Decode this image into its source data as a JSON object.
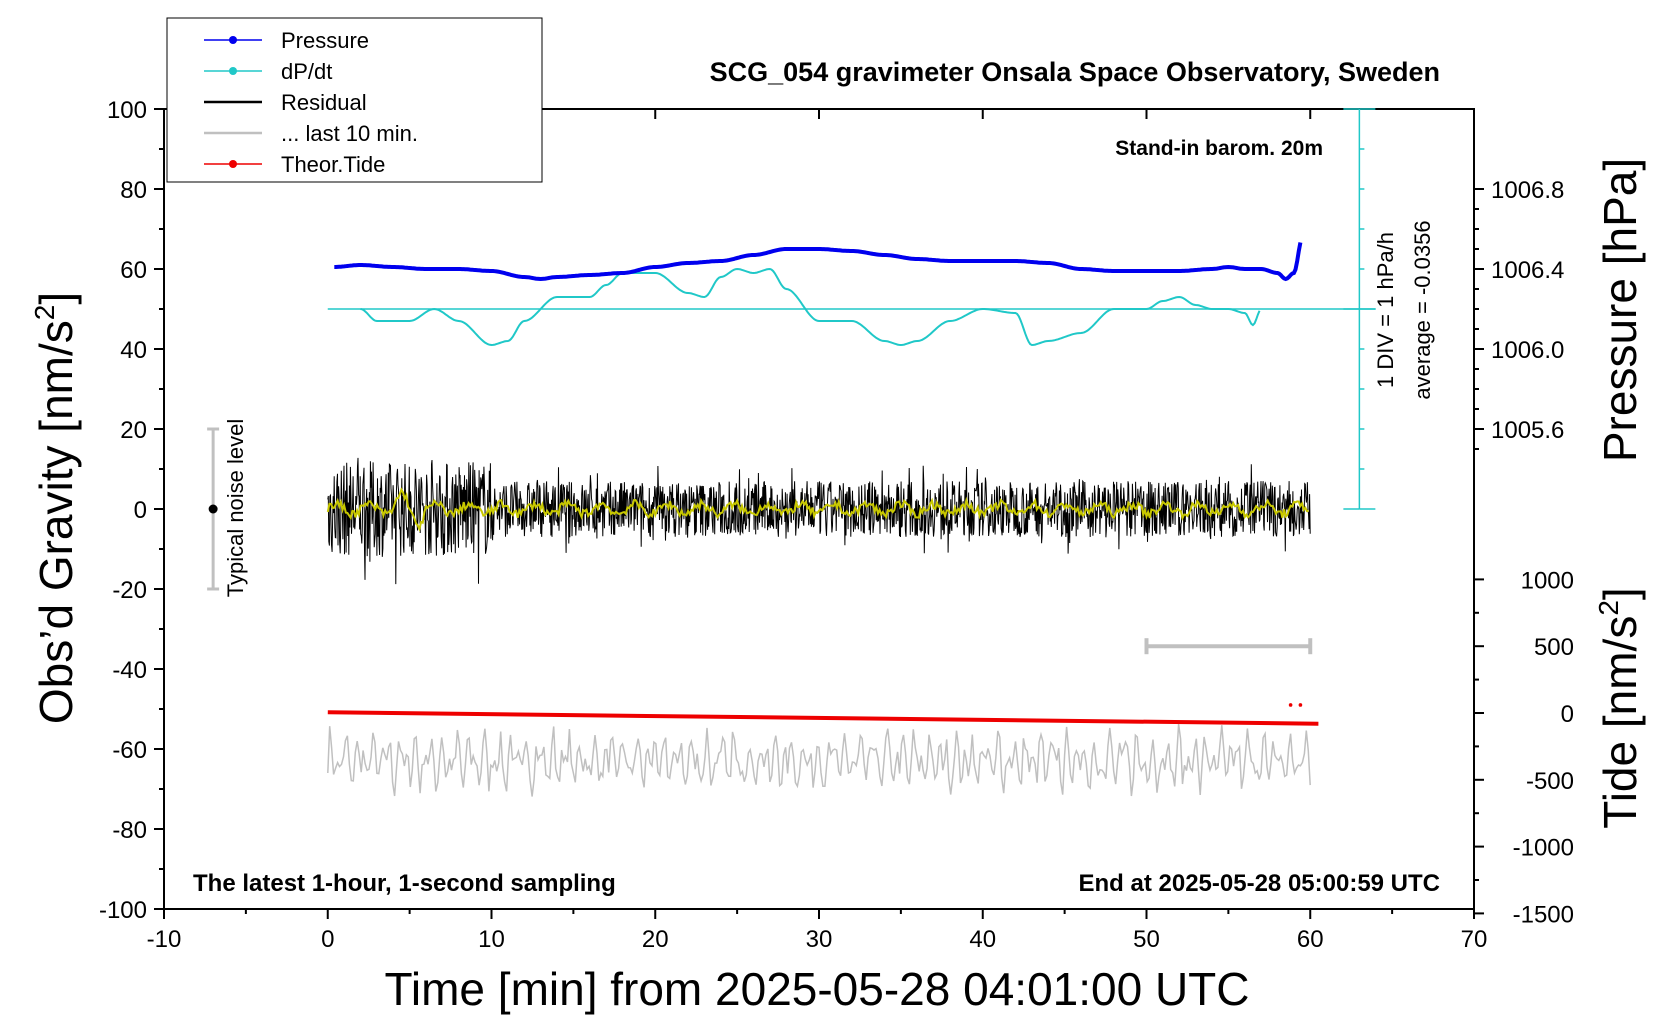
{
  "chart_data": {
    "type": "line",
    "title": "SCG_054 gravimeter Onsala Space Observatory, Sweden",
    "xlabel": "Time [min] from 2025-05-28 04:01:00 UTC",
    "ylabel": "Obs'd Gravity [nm/s²]",
    "ylabel_base": "Obs’d Gravity [nm/s",
    "ylabel_sup": "2",
    "ylabel_close": "]",
    "y2label": "Pressure [hPa]",
    "y3label_base": "Tide [nm/s",
    "y3label_sup": "2",
    "y3label_close": "]",
    "xlim": [
      -10,
      70
    ],
    "ylim": [
      -100,
      100
    ],
    "x_ticks": [
      "-10",
      "0",
      "10",
      "20",
      "30",
      "40",
      "50",
      "60",
      "70"
    ],
    "y_ticks": [
      "100",
      "80",
      "60",
      "40",
      "20",
      "0",
      "-20",
      "-40",
      "-60",
      "-80",
      "-100"
    ],
    "pressure_axis": {
      "ticks": [
        "1006.8",
        "1006.4",
        "1006.0",
        "1005.6"
      ],
      "values": [
        1006.8,
        1006.4,
        1006.0,
        1005.6
      ],
      "gravity_at": [
        80,
        60,
        40,
        20
      ]
    },
    "tide_axis": {
      "ticks": [
        "1000",
        "500",
        "0",
        "-500",
        "-1000",
        "-1500"
      ],
      "values": [
        1000,
        500,
        0,
        -500,
        -1000,
        -1500
      ]
    },
    "annotations": {
      "barometer": "Stand-in barom. 20m",
      "bottom_left": "The latest 1-hour, 1-second sampling",
      "bottom_right": "End at 2025-05-28 05:00:59 UTC",
      "noise": "Typical noise level",
      "scale_div": "1 DIV = 1 hPa/h",
      "average": "average = -0.0356"
    },
    "legend": {
      "placement": "top-left",
      "entries": [
        {
          "label": "Pressure",
          "color": "#0000ee",
          "marker": true
        },
        {
          "label": "dP/dt",
          "color": "#20c8c8",
          "marker": true
        },
        {
          "label": "Residual",
          "color": "#000000",
          "marker": false
        },
        {
          "label": "... last 10 min.",
          "color": "#c0c0c0",
          "marker": false
        },
        {
          "label": "Theor.Tide",
          "color": "#ee0000",
          "marker": true
        }
      ]
    },
    "colors": {
      "pressure": "#0000ee",
      "dpdt": "#20c8c8",
      "residual": "#000000",
      "smoothed": "#c8c800",
      "last10": "#c0c0c0",
      "tide": "#ee0000",
      "scale_bar": "#c0c0c0"
    },
    "series": [
      {
        "name": "Pressure",
        "unit": "hPa",
        "x": [
          0.4,
          2,
          4,
          6,
          8,
          10,
          12,
          13,
          14,
          16,
          18,
          20,
          22,
          24,
          26,
          28,
          30,
          32,
          34,
          36,
          38,
          40,
          42,
          44,
          46,
          48,
          50,
          52,
          54,
          55,
          56,
          57,
          58,
          58.5,
          59,
          59.5
        ],
        "values": [
          1006.41,
          1006.42,
          1006.41,
          1006.4,
          1006.4,
          1006.39,
          1006.36,
          1006.35,
          1006.36,
          1006.37,
          1006.38,
          1006.41,
          1006.43,
          1006.44,
          1006.47,
          1006.5,
          1006.5,
          1006.49,
          1006.47,
          1006.45,
          1006.44,
          1006.44,
          1006.44,
          1006.43,
          1006.4,
          1006.39,
          1006.39,
          1006.39,
          1006.4,
          1006.41,
          1006.4,
          1006.4,
          1006.38,
          1006.35,
          1006.38,
          1006.55
        ]
      },
      {
        "name": "dP/dt",
        "unit": "nm/s² display",
        "x": [
          2,
          3,
          5,
          6.5,
          8,
          10,
          11,
          12,
          14,
          16,
          17,
          18,
          20,
          22,
          23,
          24,
          25,
          26,
          27,
          28,
          30,
          32,
          34,
          35,
          36,
          38,
          40,
          42,
          43,
          44,
          46,
          48,
          50,
          51,
          52,
          53,
          54,
          55,
          56,
          56.5,
          57
        ],
        "values": [
          50,
          47,
          47,
          50,
          47,
          41,
          42,
          47,
          53,
          53,
          56,
          59,
          59,
          54,
          53,
          58,
          60,
          59,
          60,
          55,
          47,
          47,
          42,
          41,
          42,
          47,
          50,
          49,
          41,
          42,
          44,
          50,
          50,
          52,
          53,
          51,
          50,
          50,
          49,
          46,
          50
        ]
      },
      {
        "name": "Residual",
        "unit": "nm/s²",
        "x_range": [
          0,
          60
        ],
        "amplitude_early": 12,
        "amplitude_late": 7,
        "bursts": [
          2,
          3,
          4,
          5
        ]
      },
      {
        "name": "Residual (smoothed)",
        "unit": "nm/s²",
        "x_range": [
          0,
          60
        ],
        "amplitude": 2
      },
      {
        "name": "... last 10 min.",
        "unit": "nm/s²",
        "x_range": [
          0,
          60
        ],
        "center": -63,
        "amplitude": 7
      },
      {
        "name": "Theor.Tide",
        "unit": "nm/s²",
        "x": [
          0,
          60.5
        ],
        "values": [
          5,
          -80
        ]
      }
    ],
    "reference_lines": {
      "dpdt_zero_gravity": 50,
      "pressure_scale_x": 63
    },
    "noise_bar": {
      "x": -7,
      "center": 0,
      "range": [
        -20,
        20
      ]
    },
    "window_bar": {
      "x": [
        50,
        60
      ],
      "tide_value": 500
    },
    "tide_dots": {
      "x": [
        58.8,
        59.4
      ],
      "tide_value": 60
    }
  }
}
